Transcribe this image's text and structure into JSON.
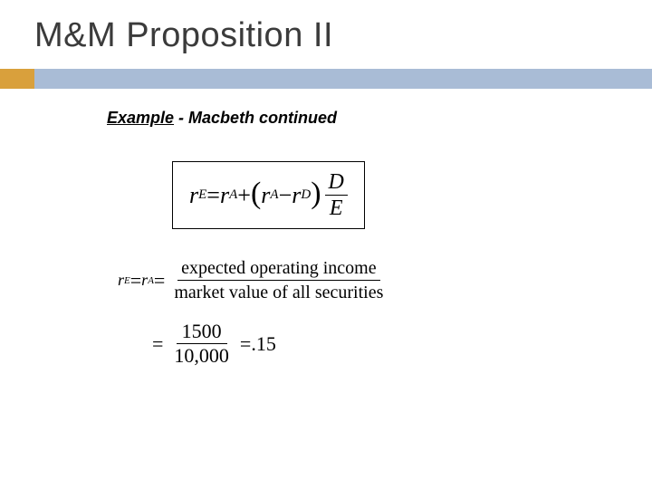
{
  "title": "M&M Proposition II",
  "subtitle_underlined": "Example",
  "subtitle_rest": " - Macbeth continued",
  "formula1": {
    "lhs_var": "r",
    "lhs_sub": "E",
    "eq": " = ",
    "t1_var": "r",
    "t1_sub": "A",
    "plus": " + ",
    "lp": "(",
    "t2_var": "r",
    "t2_sub": "A",
    "minus": " − ",
    "t3_var": "r",
    "t3_sub": "D",
    "rp": ")",
    "frac_num": "D",
    "frac_den": "E"
  },
  "formula2": {
    "l1_var": "r",
    "l1_sub": "E",
    "eq1": "  =  ",
    "l2_var": "r",
    "l2_sub": "A",
    "eq2": "  =  ",
    "num_text": "expected operating income",
    "den_text": "market value of all securities"
  },
  "formula3": {
    "eq": "= ",
    "num": "1500",
    "den": "10,000",
    "eq2": " = ",
    "result": ".15"
  },
  "colors": {
    "accent_orange": "#d9a03c",
    "accent_blue": "#a9bcd6",
    "title_color": "#3b3b3b"
  }
}
